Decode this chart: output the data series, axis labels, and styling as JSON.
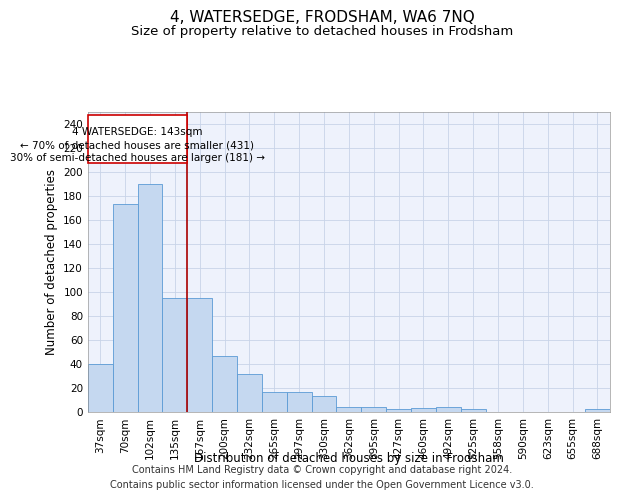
{
  "title": "4, WATERSEDGE, FRODSHAM, WA6 7NQ",
  "subtitle": "Size of property relative to detached houses in Frodsham",
  "xlabel": "Distribution of detached houses by size in Frodsham",
  "ylabel": "Number of detached properties",
  "categories": [
    "37sqm",
    "70sqm",
    "102sqm",
    "135sqm",
    "167sqm",
    "200sqm",
    "232sqm",
    "265sqm",
    "297sqm",
    "330sqm",
    "362sqm",
    "395sqm",
    "427sqm",
    "460sqm",
    "492sqm",
    "525sqm",
    "558sqm",
    "590sqm",
    "623sqm",
    "655sqm",
    "688sqm"
  ],
  "values": [
    40,
    173,
    190,
    95,
    95,
    46,
    31,
    16,
    16,
    13,
    4,
    4,
    2,
    3,
    4,
    2,
    0,
    0,
    0,
    0,
    2
  ],
  "bar_color": "#c5d8f0",
  "bar_edge_color": "#5b9bd5",
  "annotation_box_text_line1": "4 WATERSEDGE: 143sqm",
  "annotation_box_text_line2": "← 70% of detached houses are smaller (431)",
  "annotation_box_text_line3": "30% of semi-detached houses are larger (181) →",
  "vline_color": "#aa0000",
  "box_edge_color": "#cc0000",
  "grid_color": "#c8d4e8",
  "bg_color": "#eef2fc",
  "ylim": [
    0,
    250
  ],
  "yticks": [
    0,
    20,
    40,
    60,
    80,
    100,
    120,
    140,
    160,
    180,
    200,
    220,
    240
  ],
  "footer_line1": "Contains HM Land Registry data © Crown copyright and database right 2024.",
  "footer_line2": "Contains public sector information licensed under the Open Government Licence v3.0.",
  "title_fontsize": 11,
  "subtitle_fontsize": 9.5,
  "axis_label_fontsize": 8.5,
  "tick_fontsize": 7.5,
  "annotation_fontsize": 7.5,
  "footer_fontsize": 7
}
